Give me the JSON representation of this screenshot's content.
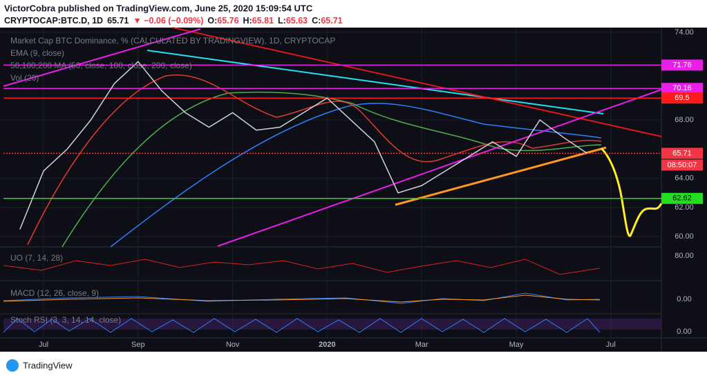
{
  "header": {
    "author_line": "VictorCobra published on TradingView.com, June 25, 2020 15:09:54 UTC",
    "symbol": "CRYPTOCAP:BTC.D, 1D",
    "last": "65.71",
    "change": "▼ −0.06 (−0.09%)",
    "ohlc": [
      {
        "label": "O:",
        "value": "65.76"
      },
      {
        "label": "H:",
        "value": "65.81"
      },
      {
        "label": "L:",
        "value": "65.63"
      },
      {
        "label": "C:",
        "value": "65.71"
      }
    ]
  },
  "chart_data": {
    "type": "line",
    "title": "Market Cap BTC Dominance, %  (CALCULATED BY TRADINGVIEW), 1D, CRYPTOCAP",
    "overlays": [
      "EMA (9, close)",
      "50,100,200 MA (50, close, 100, close, 200, close)",
      "Vol (20)"
    ],
    "categories": [
      null,
      "Jul",
      null,
      null,
      null,
      "Sep",
      null,
      null,
      null,
      "Nov",
      null,
      null,
      null,
      "2020",
      null,
      null,
      null,
      "Mar",
      null,
      null,
      null,
      "May",
      null,
      null,
      null,
      "Jul"
    ],
    "values": [
      60.5,
      64.5,
      66,
      68,
      70.5,
      72,
      70,
      68.5,
      67.5,
      68.5,
      67.3,
      67.5,
      68.5,
      69.5,
      68,
      66.5,
      63,
      63.5,
      64.5,
      65.5,
      66.5,
      65.5,
      68,
      66.8,
      65.71,
      null
    ],
    "color": "#d1d4dc",
    "ylim": [
      59.3,
      74.33
    ],
    "yticks": [
      {
        "value": 74,
        "label": "74.00"
      },
      {
        "value": 68,
        "label": "68.00"
      },
      {
        "value": 64,
        "label": "64.00"
      },
      {
        "value": 62,
        "label": "62.00"
      },
      {
        "value": 60,
        "label": "60.00"
      }
    ],
    "grid": true,
    "levels": [
      {
        "value": 71.76,
        "color": "#e91ee9"
      },
      {
        "value": 70.16,
        "color": "#e91ee9"
      },
      {
        "value": 69.5,
        "color": "#ff1a1a"
      },
      {
        "value": 65.71,
        "color": "#f23645"
      },
      {
        "value": 62.62,
        "color": "#22dd22"
      }
    ],
    "countdown": "08:50:07",
    "panes": [
      {
        "name": "UO (7, 14, 28)",
        "tick": {
          "value": 80,
          "label": "80.00"
        }
      },
      {
        "name": "MACD (12, 26, close, 9)",
        "tick": {
          "value": 0,
          "label": "0.00"
        }
      },
      {
        "name": "Stoch RSI (3, 3, 14, 14, close)",
        "tick": {
          "value": 0,
          "label": "0.00"
        }
      }
    ]
  },
  "footer": {
    "logo": "TradingView"
  }
}
